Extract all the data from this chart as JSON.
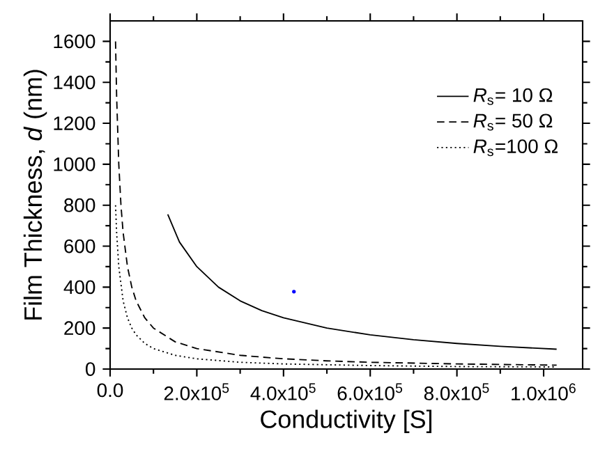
{
  "chart_data": {
    "type": "line",
    "xlabel": "Conductivity [S]",
    "ylabel": "Film Thickness, *d* (nm)",
    "xlim": [
      0,
      1090000
    ],
    "ylim": [
      0,
      1700
    ],
    "xticks": [
      {
        "value": 0,
        "label": "0.0"
      },
      {
        "value": 200000,
        "label": "2.0x10$^{5}$"
      },
      {
        "value": 400000,
        "label": "4.0x10$^{5}$"
      },
      {
        "value": 600000,
        "label": "6.0x10$^{5}$"
      },
      {
        "value": 800000,
        "label": "8.0x10$^{5}$"
      },
      {
        "value": 1000000,
        "label": "1.0x10$^{6}$"
      }
    ],
    "yticks": [
      0,
      200,
      400,
      600,
      800,
      1000,
      1200,
      1400,
      1600
    ],
    "legend": "top right",
    "grid": false,
    "marker": "none",
    "series": [
      {
        "name": "*R*$_{s}$=  10 Ω",
        "color": "#000000",
        "line_style": "solid",
        "x": [
          133000,
          160000,
          200000,
          250000,
          300000,
          350000,
          400000,
          500000,
          600000,
          700000,
          800000,
          900000,
          1030000
        ],
        "values": [
          755,
          620,
          500,
          400,
          333,
          285,
          250,
          200,
          167,
          143,
          125,
          111,
          97
        ]
      },
      {
        "name": "*R*$_{s}$=  50 Ω",
        "color": "#000000",
        "line_style": "dashed",
        "x": [
          12500,
          15000,
          20000,
          25000,
          30000,
          40000,
          50000,
          60000,
          80000,
          100000,
          150000,
          200000,
          300000,
          400000,
          500000,
          600000,
          800000,
          1030000
        ],
        "values": [
          1600,
          1333,
          1000,
          800,
          667,
          500,
          400,
          333,
          250,
          200,
          133,
          100,
          67,
          50,
          40,
          33,
          25,
          19
        ]
      },
      {
        "name": "*R*$_{s}$=100 Ω",
        "color": "#000000",
        "line_style": "dotted",
        "x": [
          12500,
          15000,
          20000,
          30000,
          40000,
          50000,
          60000,
          80000,
          100000,
          150000,
          200000,
          300000,
          400000,
          600000,
          800000,
          1030000
        ],
        "values": [
          800,
          667,
          500,
          333,
          250,
          200,
          167,
          125,
          100,
          67,
          50,
          33,
          25,
          17,
          12,
          10
        ]
      },
      {
        "type": "scatter",
        "color": "#0000ff",
        "marker": "circle",
        "x": [
          424000
        ],
        "values": [
          378
        ]
      }
    ]
  }
}
